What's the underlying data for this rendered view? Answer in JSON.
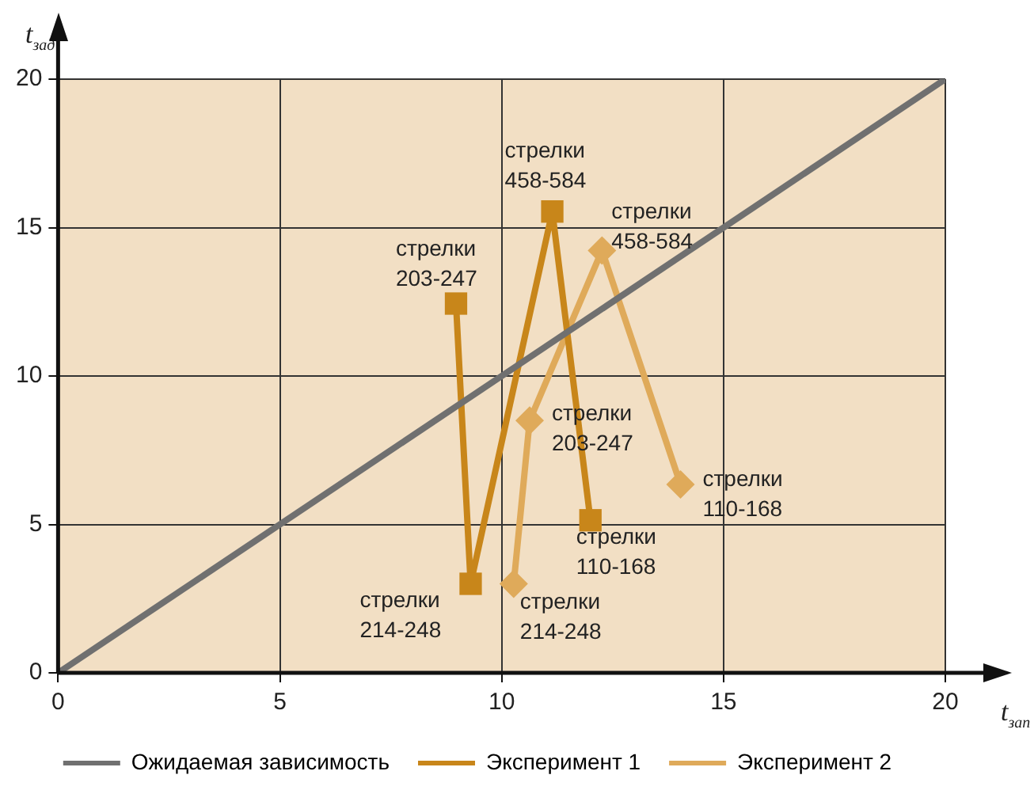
{
  "chart_data": {
    "type": "line",
    "xlabel": "t$_{зап}$",
    "ylabel": "t$_{зад}$",
    "xlim": [
      0,
      20
    ],
    "ylim": [
      0,
      20
    ],
    "xticks": [
      0,
      5,
      10,
      15,
      20
    ],
    "yticks": [
      0,
      5,
      10,
      15,
      20
    ],
    "grid": true,
    "legend": "bottom",
    "series": [
      {
        "name": "Ожидаемая зависимость",
        "color": "#707070",
        "marker": "none",
        "x": [
          0,
          20
        ],
        "values": [
          0,
          20
        ]
      },
      {
        "name": "Эксперимент 1",
        "color": "#c8861a",
        "marker": "square",
        "x": [
          8.97,
          9.3,
          11.14,
          12.0
        ],
        "values": [
          12.44,
          3.0,
          15.54,
          5.14
        ]
      },
      {
        "name": "Эксперимент 2",
        "color": "#dfaa5a",
        "marker": "diamond",
        "x": [
          10.27,
          10.63,
          12.26,
          14.03
        ],
        "values": [
          3.0,
          8.5,
          14.23,
          6.35
        ]
      }
    ],
    "annotations": [
      {
        "text": "стрелки\n203-247",
        "x": 8.97,
        "y": 12.44
      },
      {
        "text": "стрелки\n214-248",
        "x": 9.3,
        "y": 3.0
      },
      {
        "text": "стрелки\n458-584",
        "x": 11.14,
        "y": 15.54
      },
      {
        "text": "стрелки\n110-168",
        "x": 12.0,
        "y": 5.14
      },
      {
        "text": "стрелки\n214-248",
        "x": 10.27,
        "y": 3.0
      },
      {
        "text": "стрелки\n203-247",
        "x": 10.63,
        "y": 8.5
      },
      {
        "text": "стрелки\n458-584",
        "x": 12.26,
        "y": 14.23
      },
      {
        "text": "стрелки\n110-168",
        "x": 14.03,
        "y": 6.35
      }
    ]
  }
}
